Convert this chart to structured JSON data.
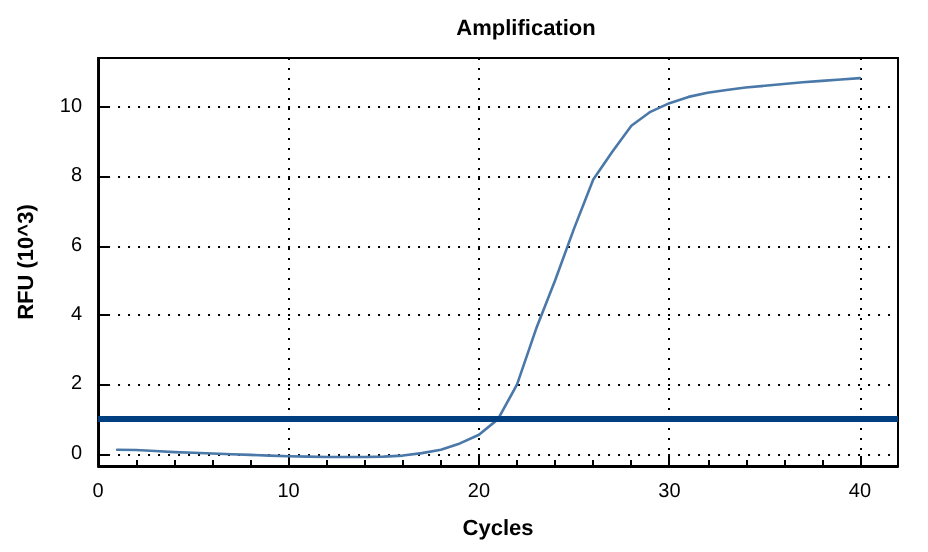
{
  "chart_data": {
    "type": "line",
    "title": "Amplification",
    "xlabel": "Cycles",
    "ylabel": "RFU (10^3)",
    "x": [
      1,
      2,
      3,
      4,
      5,
      6,
      7,
      8,
      9,
      10,
      11,
      12,
      13,
      14,
      15,
      16,
      17,
      18,
      19,
      20,
      21,
      22,
      23,
      24,
      25,
      26,
      27,
      28,
      29,
      30,
      31,
      32,
      33,
      34,
      35,
      36,
      37,
      38,
      39,
      40
    ],
    "series": [
      {
        "color": "#4a78a8",
        "values": [
          0.12,
          0.11,
          0.08,
          0.05,
          0.03,
          0.01,
          -0.01,
          -0.03,
          -0.05,
          -0.07,
          -0.08,
          -0.09,
          -0.09,
          -0.09,
          -0.08,
          -0.05,
          0.02,
          0.12,
          0.3,
          0.55,
          1.0,
          2.0,
          3.6,
          5.0,
          6.5,
          7.9,
          8.7,
          9.45,
          9.85,
          10.1,
          10.28,
          10.4,
          10.48,
          10.55,
          10.6,
          10.65,
          10.7,
          10.74,
          10.78,
          10.82
        ]
      }
    ],
    "xlim": [
      0,
      42
    ],
    "xticks": [
      0,
      10,
      20,
      30,
      40
    ],
    "ylim": [
      -0.35,
      11.4
    ],
    "yticks": [
      0,
      2,
      4,
      6,
      8,
      10
    ],
    "ref_lines": [
      {
        "axis": "y",
        "value": 1,
        "color": "#003f7f"
      }
    ],
    "grid": true,
    "marker": "none",
    "line_style": "solid"
  }
}
